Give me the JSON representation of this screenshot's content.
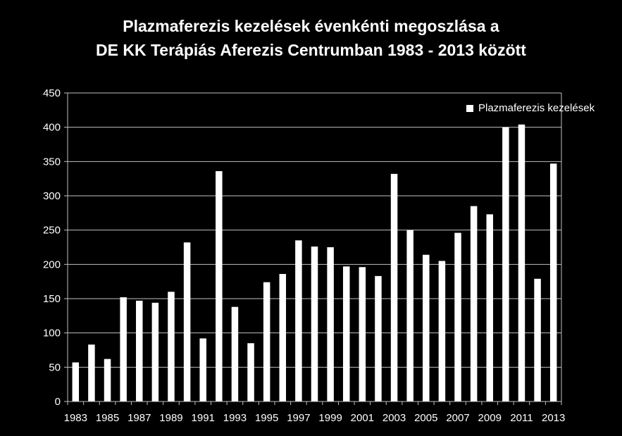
{
  "chart_data": {
    "type": "bar",
    "title_line1": "Plazmaferezis kezelések évenkénti megoszlása a",
    "title_line2": "DE KK Terápiás Aferezis Centrumban 1983 - 2013 között",
    "categories": [
      "1983",
      "1984",
      "1985",
      "1986",
      "1987",
      "1988",
      "1989",
      "1990",
      "1991",
      "1992",
      "1993",
      "1994",
      "1995",
      "1996",
      "1997",
      "1998",
      "1999",
      "2000",
      "2001",
      "2002",
      "2003",
      "2004",
      "2005",
      "2006",
      "2007",
      "2008",
      "2009",
      "2010",
      "2011",
      "2012",
      "2013"
    ],
    "tick_labels": [
      "1983",
      "",
      "1985",
      "",
      "1987",
      "",
      "1989",
      "",
      "1991",
      "",
      "1993",
      "",
      "1995",
      "",
      "1997",
      "",
      "1999",
      "",
      "2001",
      "",
      "2003",
      "",
      "2005",
      "",
      "2007",
      "",
      "2009",
      "",
      "2011",
      "",
      "2013"
    ],
    "series": [
      {
        "name": "Plazmaferezis kezelések",
        "values": [
          57,
          83,
          62,
          152,
          147,
          144,
          160,
          232,
          92,
          336,
          138,
          85,
          174,
          186,
          235,
          226,
          225,
          197,
          196,
          183,
          332,
          250,
          214,
          205,
          246,
          285,
          273,
          400,
          404,
          179,
          347
        ],
        "color": "#ffffff"
      }
    ],
    "ylim": [
      0,
      450
    ],
    "yticks": [
      0,
      50,
      100,
      150,
      200,
      250,
      300,
      350,
      400,
      450
    ],
    "grid": true,
    "legend_position": "top-right",
    "colors": {
      "background": "#000000",
      "bars": "#ffffff",
      "grid": "#bfbfbf",
      "text": "#ffffff"
    }
  }
}
